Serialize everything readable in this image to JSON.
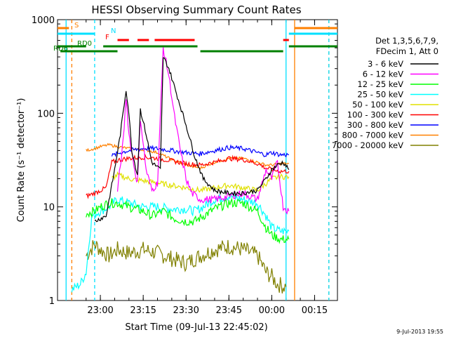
{
  "chart_data": {
    "type": "line",
    "title": "HESSI Observing Summary Count Rates",
    "xlabel": "Start Time (09-Jul-13 22:45:02)",
    "ylabel": "Count Rate (s⁻¹ detector⁻¹)",
    "y_scale": "log",
    "ylim": [
      1,
      1000
    ],
    "xlim": [
      "22:45",
      "00:23"
    ],
    "x_ticks": [
      "23:00",
      "23:15",
      "23:30",
      "23:45",
      "00:00",
      "00:15"
    ],
    "y_ticks": [
      "1",
      "10",
      "100",
      "1000"
    ],
    "timestamp": "9-Jul-2013 19:55",
    "legend_header": [
      "Det 1,3,5,6,7,9,",
      "FDecim 1, Att 0"
    ],
    "legend_placement": "right",
    "flags": [
      {
        "label": "S",
        "color": "#ff8000",
        "segments": [
          [
            "22:45",
            "22:49"
          ],
          [
            "00:08",
            "00:23"
          ]
        ]
      },
      {
        "label": "N",
        "color": "#00e0ff",
        "segments": [
          [
            "22:45",
            "22:58"
          ],
          [
            "00:06",
            "00:23"
          ]
        ]
      },
      {
        "label": "F",
        "color": "#ff0000",
        "segments": [
          [
            "23:06",
            "23:10"
          ],
          [
            "23:13",
            "23:17"
          ],
          [
            "23:19",
            "23:33"
          ],
          [
            "00:04",
            "00:06"
          ]
        ]
      },
      {
        "label": "RD0",
        "color": "#008000",
        "segments": [
          [
            "22:45",
            "22:55"
          ],
          [
            "23:01",
            "23:34"
          ],
          [
            "00:06",
            "00:23"
          ]
        ]
      },
      {
        "label": "RD6",
        "color": "#008000",
        "segments": [
          [
            "22:46",
            "23:06"
          ],
          [
            "23:35",
            "00:04"
          ]
        ]
      }
    ],
    "series": [
      {
        "name": "3 - 6 keV",
        "color": "#000000",
        "points": [
          [
            "22:58",
            7
          ],
          [
            "23:00",
            7.5
          ],
          [
            "23:02",
            8
          ],
          [
            "23:05",
            25
          ],
          [
            "23:07",
            60
          ],
          [
            "23:09",
            180
          ],
          [
            "23:10",
            100
          ],
          [
            "23:11",
            40
          ],
          [
            "23:13",
            22
          ],
          [
            "23:14",
            110
          ],
          [
            "23:16",
            60
          ],
          [
            "23:18",
            30
          ],
          [
            "23:21",
            25
          ],
          [
            "23:22",
            400
          ],
          [
            "23:24",
            300
          ],
          [
            "23:27",
            150
          ],
          [
            "23:30",
            75
          ],
          [
            "23:33",
            35
          ],
          [
            "23:36",
            20
          ],
          [
            "23:40",
            15
          ],
          [
            "23:45",
            14
          ],
          [
            "23:50",
            14
          ],
          [
            "23:55",
            15
          ],
          [
            "23:58",
            20
          ],
          [
            "00:00",
            25
          ],
          [
            "00:02",
            28
          ],
          [
            "00:04",
            30
          ],
          [
            "00:06",
            25
          ]
        ]
      },
      {
        "name": "6 - 12 keV",
        "color": "#ff00ff",
        "points": [
          [
            "23:06",
            15
          ],
          [
            "23:08",
            50
          ],
          [
            "23:09",
            150
          ],
          [
            "23:10",
            60
          ],
          [
            "23:12",
            25
          ],
          [
            "23:13",
            18
          ],
          [
            "23:14",
            90
          ],
          [
            "23:16",
            25
          ],
          [
            "23:18",
            15
          ],
          [
            "23:20",
            18
          ],
          [
            "23:22",
            500
          ],
          [
            "23:24",
            250
          ],
          [
            "23:26",
            90
          ],
          [
            "23:28",
            40
          ],
          [
            "23:30",
            20
          ],
          [
            "23:32",
            14
          ],
          [
            "23:35",
            12
          ],
          [
            "23:40",
            12
          ],
          [
            "23:45",
            13
          ],
          [
            "23:50",
            14
          ],
          [
            "23:55",
            12
          ],
          [
            "23:58",
            25
          ],
          [
            "00:00",
            20
          ],
          [
            "00:02",
            30
          ],
          [
            "00:04",
            10
          ],
          [
            "00:06",
            9
          ]
        ]
      },
      {
        "name": "12 - 25 keV",
        "color": "#00ff00",
        "points": [
          [
            "22:55",
            8.5
          ],
          [
            "22:58",
            9
          ],
          [
            "23:00",
            10
          ],
          [
            "23:03",
            11
          ],
          [
            "23:06",
            11
          ],
          [
            "23:10",
            10
          ],
          [
            "23:15",
            9
          ],
          [
            "23:18",
            8
          ],
          [
            "23:22",
            9
          ],
          [
            "23:26",
            7.5
          ],
          [
            "23:30",
            7
          ],
          [
            "23:33",
            7
          ],
          [
            "23:36",
            8
          ],
          [
            "23:40",
            9.5
          ],
          [
            "23:45",
            11
          ],
          [
            "23:50",
            11
          ],
          [
            "23:55",
            9
          ],
          [
            "23:58",
            6
          ],
          [
            "00:00",
            5
          ],
          [
            "00:03",
            4.5
          ],
          [
            "00:06",
            4.5
          ]
        ]
      },
      {
        "name": "25 - 50 keV",
        "color": "#00ffff",
        "points": [
          [
            "22:50",
            1.3
          ],
          [
            "22:53",
            1.5
          ],
          [
            "22:55",
            2
          ],
          [
            "22:57",
            8
          ],
          [
            "23:00",
            9
          ],
          [
            "23:03",
            10
          ],
          [
            "23:06",
            12
          ],
          [
            "23:10",
            11
          ],
          [
            "23:15",
            10
          ],
          [
            "23:20",
            10
          ],
          [
            "23:25",
            9.5
          ],
          [
            "23:30",
            9.5
          ],
          [
            "23:33",
            9
          ],
          [
            "23:36",
            10
          ],
          [
            "23:40",
            12
          ],
          [
            "23:45",
            13
          ],
          [
            "23:50",
            12
          ],
          [
            "23:55",
            11
          ],
          [
            "23:58",
            8
          ],
          [
            "00:00",
            6
          ],
          [
            "00:03",
            5.5
          ],
          [
            "00:06",
            5.5
          ]
        ]
      },
      {
        "name": "50 - 100 keV",
        "color": "#e0e000",
        "points": [
          [
            "23:04",
            20
          ],
          [
            "23:06",
            22
          ],
          [
            "23:10",
            20
          ],
          [
            "23:15",
            19
          ],
          [
            "23:20",
            18
          ],
          [
            "23:25",
            17
          ],
          [
            "23:30",
            16
          ],
          [
            "23:35",
            15
          ],
          [
            "23:40",
            16
          ],
          [
            "23:45",
            17
          ],
          [
            "23:50",
            16
          ],
          [
            "23:55",
            15
          ],
          [
            "00:00",
            20
          ],
          [
            "00:03",
            21
          ],
          [
            "00:06",
            21
          ]
        ]
      },
      {
        "name": "100 - 300 keV",
        "color": "#ff0000",
        "points": [
          [
            "22:55",
            13
          ],
          [
            "22:58",
            14
          ],
          [
            "23:00",
            15
          ],
          [
            "23:02",
            16
          ],
          [
            "23:04",
            30
          ],
          [
            "23:07",
            32
          ],
          [
            "23:10",
            33
          ],
          [
            "23:15",
            34
          ],
          [
            "23:20",
            33
          ],
          [
            "23:25",
            31
          ],
          [
            "23:30",
            29
          ],
          [
            "23:35",
            28
          ],
          [
            "23:40",
            30
          ],
          [
            "23:45",
            33
          ],
          [
            "23:50",
            32
          ],
          [
            "23:55",
            29
          ],
          [
            "23:58",
            26
          ],
          [
            "00:00",
            25
          ],
          [
            "00:03",
            24
          ],
          [
            "00:06",
            24
          ]
        ]
      },
      {
        "name": "300 - 800 keV",
        "color": "#0000ff",
        "points": [
          [
            "23:04",
            35
          ],
          [
            "23:07",
            38
          ],
          [
            "23:10",
            40
          ],
          [
            "23:15",
            42
          ],
          [
            "23:20",
            42
          ],
          [
            "23:25",
            40
          ],
          [
            "23:30",
            38
          ],
          [
            "23:35",
            37
          ],
          [
            "23:40",
            40
          ],
          [
            "23:45",
            43
          ],
          [
            "23:50",
            42
          ],
          [
            "23:55",
            38
          ],
          [
            "23:58",
            36
          ],
          [
            "00:00",
            38
          ],
          [
            "00:03",
            36
          ],
          [
            "00:06",
            36
          ]
        ]
      },
      {
        "name": "800 - 7000 keV",
        "color": "#ff8000",
        "points": [
          [
            "22:55",
            40
          ],
          [
            "22:58",
            42
          ],
          [
            "23:00",
            44
          ],
          [
            "23:03",
            46
          ],
          [
            "23:06",
            44
          ],
          [
            "23:10",
            42
          ],
          [
            "23:15",
            41
          ],
          [
            "23:20",
            38
          ],
          [
            "23:25",
            32
          ],
          [
            "23:30",
            28
          ],
          [
            "23:35",
            26
          ],
          [
            "23:40",
            30
          ],
          [
            "23:45",
            33
          ],
          [
            "23:50",
            33
          ],
          [
            "23:55",
            30
          ],
          [
            "23:58",
            28
          ],
          [
            "00:00",
            28
          ],
          [
            "00:03",
            29
          ],
          [
            "00:06",
            29
          ]
        ]
      },
      {
        "name": "7000 - 20000 keV",
        "color": "#808000",
        "points": [
          [
            "22:55",
            3
          ],
          [
            "22:58",
            4
          ],
          [
            "23:00",
            3.5
          ],
          [
            "23:03",
            3
          ],
          [
            "23:06",
            3.5
          ],
          [
            "23:10",
            3.2
          ],
          [
            "23:15",
            3.5
          ],
          [
            "23:20",
            3.2
          ],
          [
            "23:25",
            2.8
          ],
          [
            "23:30",
            2.5
          ],
          [
            "23:33",
            2.8
          ],
          [
            "23:37",
            3.2
          ],
          [
            "23:40",
            3.5
          ],
          [
            "23:45",
            3.8
          ],
          [
            "23:50",
            3.5
          ],
          [
            "23:55",
            3
          ],
          [
            "23:58",
            2
          ],
          [
            "00:00",
            1.8
          ],
          [
            "00:02",
            1.5
          ],
          [
            "00:05",
            1.4
          ]
        ]
      }
    ],
    "series_noisy_base": [
      {
        "name": "3 - 6 keV",
        "points": [
          [
            "22:58",
            7
          ],
          [
            "23:04",
            8
          ]
        ]
      },
      {
        "name": "6 - 12 keV",
        "points": [
          [
            "23:02",
            17
          ],
          [
            "23:10",
            20
          ],
          [
            "23:32",
            14
          ],
          [
            "23:40",
            12
          ]
        ]
      },
      {
        "name": "12 - 25 keV",
        "points": [
          [
            "23:00",
            10
          ],
          [
            "23:10",
            10
          ],
          [
            "23:20",
            9
          ],
          [
            "23:30",
            7
          ],
          [
            "23:40",
            9.5
          ],
          [
            "23:50",
            11
          ],
          [
            "00:00",
            5
          ]
        ]
      }
    ],
    "vlines": [
      {
        "x": "22:48",
        "color": "#00e0ff",
        "style": "solid"
      },
      {
        "x": "22:50",
        "color": "#ff8000",
        "style": "dashed"
      },
      {
        "x": "22:58",
        "color": "#00e0ff",
        "style": "dashed"
      },
      {
        "x": "00:05",
        "color": "#00e0ff",
        "style": "solid"
      },
      {
        "x": "00:08",
        "color": "#ff8000",
        "style": "solid"
      },
      {
        "x": "00:20",
        "color": "#ff8000",
        "style": "dashed"
      },
      {
        "x": "00:20",
        "color": "#00e0ff",
        "style": "dashed"
      }
    ]
  }
}
